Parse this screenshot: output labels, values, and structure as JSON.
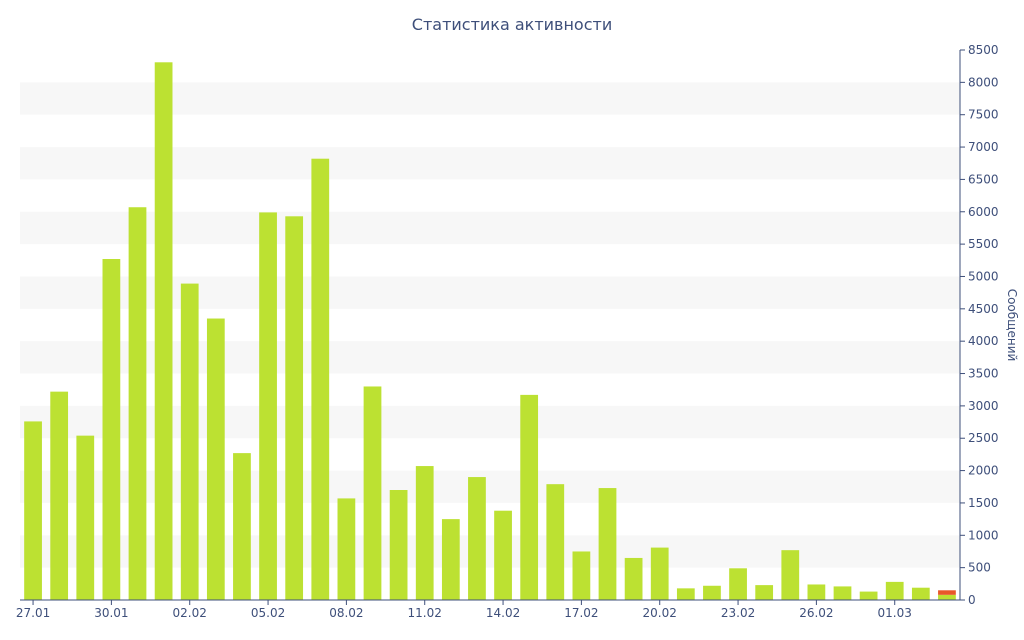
{
  "chart_data": {
    "type": "bar",
    "title": "Статистика активности",
    "ylabel": "Сообщений",
    "xlabel": "",
    "ylim": [
      0,
      8500
    ],
    "y_ticks": [
      0,
      500,
      1000,
      1500,
      2000,
      2500,
      3000,
      3500,
      4000,
      4500,
      5000,
      5500,
      6000,
      6500,
      7000,
      7500,
      8000,
      8500
    ],
    "y_axis_position": "right",
    "grid": "alternating horizontal bands",
    "x_tick_labels": [
      "27.01",
      "30.01",
      "02.02",
      "05.02",
      "08.02",
      "11.02",
      "14.02",
      "17.02",
      "20.02",
      "23.02",
      "26.02",
      "01.03"
    ],
    "categories": [
      "27.01",
      "28.01",
      "29.01",
      "30.01",
      "31.01",
      "01.02",
      "02.02",
      "03.02",
      "04.02",
      "05.02",
      "06.02",
      "07.02",
      "08.02",
      "09.02",
      "10.02",
      "11.02",
      "12.02",
      "13.02",
      "14.02",
      "15.02",
      "16.02",
      "17.02",
      "18.02",
      "19.02",
      "20.02",
      "21.02",
      "22.02",
      "23.02",
      "24.02",
      "25.02",
      "26.02",
      "27.02",
      "28.02",
      "01.03",
      "02.03",
      "03.03"
    ],
    "series": [
      {
        "color": "#bce132",
        "values": [
          2760,
          3220,
          2540,
          5270,
          6070,
          8310,
          4890,
          4350,
          2270,
          5990,
          5930,
          6820,
          1570,
          3300,
          1700,
          2070,
          1250,
          1900,
          1380,
          3170,
          1790,
          750,
          1730,
          650,
          810,
          180,
          220,
          490,
          230,
          770,
          240,
          210,
          130,
          280,
          190,
          80
        ]
      },
      {
        "color": "#e8582a",
        "values": [
          0,
          0,
          0,
          0,
          0,
          0,
          0,
          0,
          0,
          0,
          0,
          0,
          0,
          0,
          0,
          0,
          0,
          0,
          0,
          0,
          0,
          0,
          0,
          0,
          0,
          0,
          0,
          0,
          0,
          0,
          0,
          0,
          0,
          0,
          0,
          70
        ]
      }
    ],
    "colors": {
      "axis": "#3e4f7a",
      "band": "#f7f7f7",
      "text": "#3e4f7a"
    }
  }
}
